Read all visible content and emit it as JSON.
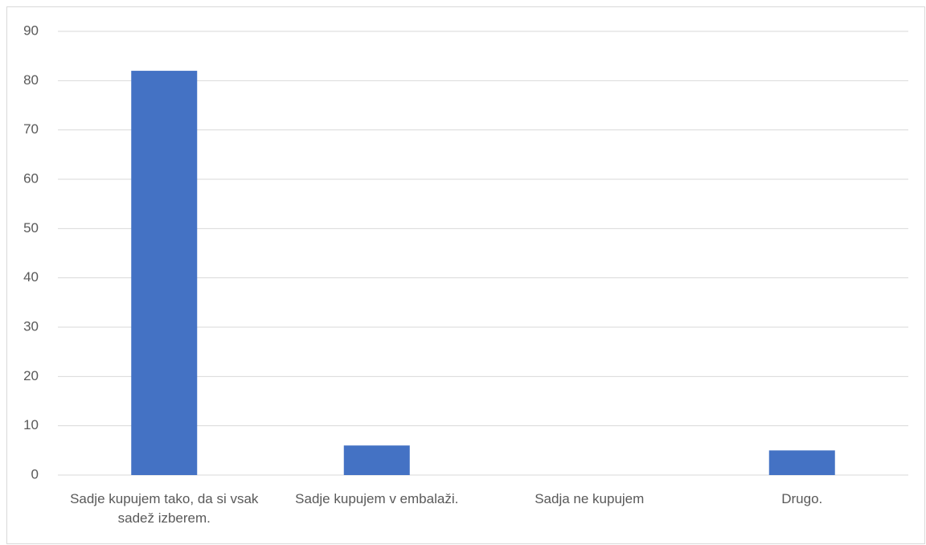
{
  "chart_data": {
    "type": "bar",
    "categories": [
      "Sadje kupujem tako, da si vsak sadež izberem.",
      "Sadje kupujem v embalaži.",
      "Sadja ne kupujem",
      "Drugo."
    ],
    "values": [
      82,
      6,
      0,
      5
    ],
    "color": "#4472c4",
    "ylim": [
      0,
      90
    ],
    "yticks": [
      0,
      10,
      20,
      30,
      40,
      50,
      60,
      70,
      80,
      90
    ],
    "grid": true
  }
}
